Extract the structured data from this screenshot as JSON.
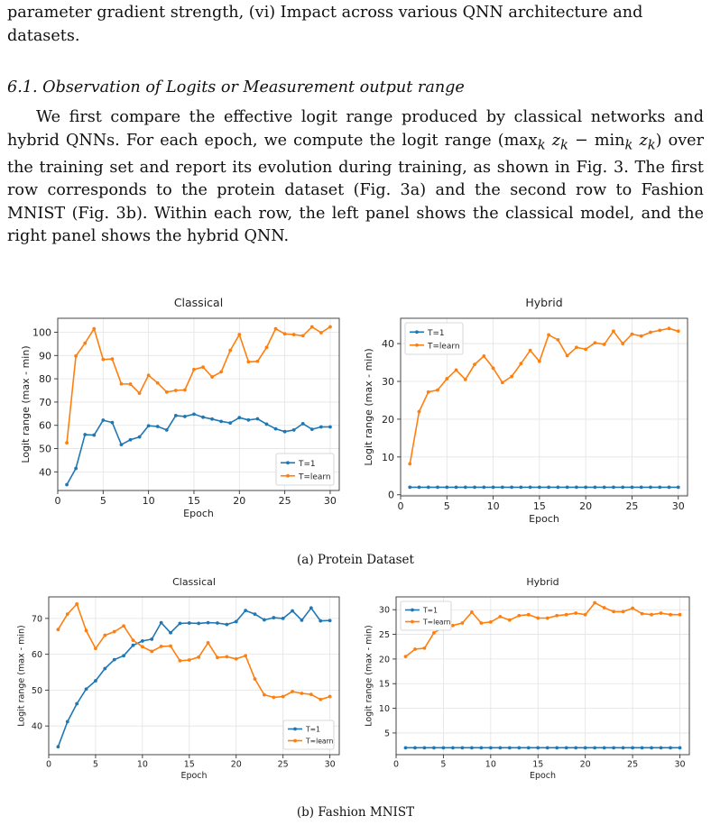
{
  "text": {
    "para1": "parameter gradient strength, (vi) Impact across various QNN architecture and datasets.",
    "section_title": "6.1. Observation of Logits or Measurement output range",
    "para2_a": "We first compare the effective logit range produced by classical networks and hybrid QNNs. For each epoch, we compute the logit range (max",
    "para2_k1": "k",
    "para2_z1": " z",
    "para2_k2": "k",
    "para2_b": " − min",
    "para2_k3": "k",
    "para2_z2": " z",
    "para2_k4": "k",
    "para2_c": ") over the training set and report its evolution during training, as shown in Fig. 3. The first row corresponds to the protein dataset (Fig. 3a) and the second row to Fashion MNIST (Fig. 3b). Within each row, the left panel shows the classical model, and the right panel shows the hybrid QNN.",
    "caption_a": "(a) Protein Dataset",
    "caption_b": "(b) Fashion MNIST"
  },
  "colors": {
    "t1": "#1f77b4",
    "tlearn": "#ff7f0e"
  },
  "chart_data": [
    {
      "type": "line",
      "title": "Classical",
      "xlabel": "Epoch",
      "ylabel": "Logit range (max - min)",
      "xlim": [
        0,
        31
      ],
      "ylim": [
        32,
        106
      ],
      "xticks": [
        0,
        5,
        10,
        15,
        20,
        25,
        30
      ],
      "yticks": [
        40,
        50,
        60,
        70,
        80,
        90,
        100
      ],
      "grid": true,
      "legend_position": "lower right",
      "x": [
        1,
        2,
        3,
        4,
        5,
        6,
        7,
        8,
        9,
        10,
        11,
        12,
        13,
        14,
        15,
        16,
        17,
        18,
        19,
        20,
        21,
        22,
        23,
        24,
        25,
        26,
        27,
        28,
        29,
        30
      ],
      "series": [
        {
          "name": "T=1",
          "color": "#1f77b4",
          "values": [
            34.5,
            41.5,
            56,
            55.8,
            62.2,
            61.2,
            51.7,
            53.8,
            55,
            59.8,
            59.5,
            58,
            64.2,
            63.8,
            64.8,
            63.5,
            62.7,
            61.7,
            61,
            63.3,
            62.3,
            62.8,
            60.5,
            58.5,
            57.3,
            58,
            60.7,
            58.3,
            59.3,
            59.3
          ]
        },
        {
          "name": "T=learn",
          "color": "#ff7f0e",
          "values": [
            52.5,
            89.8,
            95.3,
            101.5,
            88.3,
            88.5,
            77.8,
            77.7,
            73.8,
            81.5,
            78.2,
            74.3,
            75,
            75.2,
            84,
            85,
            80.8,
            83,
            92.2,
            99,
            87.3,
            87.5,
            93.5,
            101.5,
            99.3,
            99,
            98.5,
            102.3,
            99.8,
            102.3
          ]
        }
      ]
    },
    {
      "type": "line",
      "title": "Hybrid",
      "xlabel": "Epoch",
      "ylabel": "Logit range (max - min)",
      "xlim": [
        0,
        31
      ],
      "ylim": [
        -0.3,
        46.7
      ],
      "xticks": [
        0,
        5,
        10,
        15,
        20,
        25,
        30
      ],
      "yticks": [
        0,
        10,
        20,
        30,
        40
      ],
      "grid": true,
      "legend_position": "upper left",
      "x": [
        1,
        2,
        3,
        4,
        5,
        6,
        7,
        8,
        9,
        10,
        11,
        12,
        13,
        14,
        15,
        16,
        17,
        18,
        19,
        20,
        21,
        22,
        23,
        24,
        25,
        26,
        27,
        28,
        29,
        30
      ],
      "series": [
        {
          "name": "T=1",
          "color": "#1f77b4",
          "values": [
            2,
            2,
            2,
            2,
            2,
            2,
            2,
            2,
            2,
            2,
            2,
            2,
            2,
            2,
            2,
            2,
            2,
            2,
            2,
            2,
            2,
            2,
            2,
            2,
            2,
            2,
            2,
            2,
            2,
            2
          ]
        },
        {
          "name": "T=learn",
          "color": "#ff7f0e",
          "values": [
            8.2,
            22,
            27.2,
            27.7,
            30.7,
            33,
            30.5,
            34.5,
            36.7,
            33.5,
            29.7,
            31.3,
            34.7,
            38.2,
            35.3,
            42.3,
            41,
            36.8,
            39,
            38.5,
            40.2,
            39.8,
            43.3,
            40,
            42.5,
            42,
            43,
            43.5,
            44,
            43.3
          ]
        }
      ]
    },
    {
      "type": "line",
      "title": "Classical",
      "xlabel": "Epoch",
      "ylabel": "Logit range (max - min)",
      "xlim": [
        0,
        31
      ],
      "ylim": [
        32,
        76
      ],
      "xticks": [
        0,
        5,
        10,
        15,
        20,
        25,
        30
      ],
      "yticks": [
        40,
        50,
        60,
        70
      ],
      "grid": true,
      "legend_position": "lower right",
      "x": [
        1,
        2,
        3,
        4,
        5,
        6,
        7,
        8,
        9,
        10,
        11,
        12,
        13,
        14,
        15,
        16,
        17,
        18,
        19,
        20,
        21,
        22,
        23,
        24,
        25,
        26,
        27,
        28,
        29,
        30
      ],
      "series": [
        {
          "name": "T=1",
          "color": "#1f77b4",
          "values": [
            34.2,
            41.2,
            46.2,
            50.3,
            52.6,
            56,
            58.5,
            59.6,
            62.5,
            63.7,
            64.2,
            68.8,
            66,
            68.6,
            68.7,
            68.6,
            68.8,
            68.7,
            68.3,
            69.1,
            72.2,
            71.2,
            69.6,
            70.2,
            70,
            72.1,
            69.5,
            72.9,
            69.3,
            69.4
          ]
        },
        {
          "name": "T=learn",
          "color": "#ff7f0e",
          "values": [
            66.9,
            71.2,
            74,
            66.6,
            61.6,
            65.3,
            66.3,
            67.9,
            63.9,
            62.1,
            60.8,
            62.2,
            62.3,
            58.2,
            58.4,
            59.2,
            63.2,
            59.1,
            59.3,
            58.7,
            59.6,
            53.1,
            48.7,
            48,
            48.2,
            49.6,
            49.1,
            48.8,
            47.4,
            48.2
          ]
        }
      ]
    },
    {
      "type": "line",
      "title": "Hybrid",
      "xlabel": "Epoch",
      "ylabel": "Logit range (max - min)",
      "xlim": [
        0,
        31
      ],
      "ylim": [
        0.6,
        32.6
      ],
      "xticks": [
        0,
        5,
        10,
        15,
        20,
        25,
        30
      ],
      "yticks": [
        5,
        10,
        15,
        20,
        25,
        30
      ],
      "grid": true,
      "legend_position": "upper left",
      "x": [
        1,
        2,
        3,
        4,
        5,
        6,
        7,
        8,
        9,
        10,
        11,
        12,
        13,
        14,
        15,
        16,
        17,
        18,
        19,
        20,
        21,
        22,
        23,
        24,
        25,
        26,
        27,
        28,
        29,
        30
      ],
      "series": [
        {
          "name": "T=1",
          "color": "#1f77b4",
          "values": [
            2,
            2,
            2,
            2,
            2,
            2,
            2,
            2,
            2,
            2,
            2,
            2,
            2,
            2,
            2,
            2,
            2,
            2,
            2,
            2,
            2,
            2,
            2,
            2,
            2,
            2,
            2,
            2,
            2,
            2
          ]
        },
        {
          "name": "T=learn",
          "color": "#ff7f0e",
          "values": [
            20.5,
            22,
            22.2,
            25.3,
            26.5,
            26.8,
            27.3,
            29.5,
            27.3,
            27.5,
            28.6,
            27.9,
            28.8,
            29,
            28.3,
            28.3,
            28.8,
            29,
            29.3,
            29,
            31.4,
            30.4,
            29.6,
            29.6,
            30.3,
            29.2,
            29,
            29.3,
            29,
            29
          ]
        }
      ]
    }
  ]
}
